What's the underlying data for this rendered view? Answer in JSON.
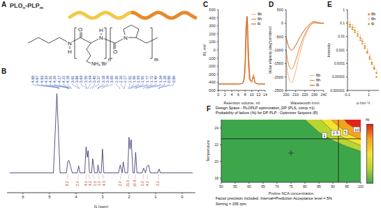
{
  "panel_labels": [
    "A",
    "B",
    "C",
    "D",
    "E",
    "F"
  ],
  "structure": {
    "title_parts": [
      {
        "text": "PLO",
        "sub": "n"
      },
      {
        "text": "-PLP",
        "sub": "m"
      }
    ],
    "atoms": [
      "N",
      "H",
      "O",
      "N",
      "H",
      "O",
      "N",
      "NH₃⁺Br⁻"
    ],
    "repeats": [
      "n",
      "m"
    ],
    "helix_colors": [
      "#f2c94c",
      "#e8892b"
    ]
  },
  "chart_data": [
    {
      "type": "line",
      "x_label": "f1 (ppm)",
      "color": "#2a2a6a",
      "x": [
        6.5,
        4.85,
        4.72,
        4.6,
        4.36,
        4.31,
        4.27,
        4.22,
        4.14,
        3.95,
        3.9,
        3.85,
        3.67,
        3.62,
        3.57,
        3.54,
        3.49,
        3.41,
        3.37,
        3.3,
        3.2,
        3.17,
        3.12,
        3.05,
        3.0,
        2.95,
        2.4,
        2.33,
        2.26,
        2.22,
        2.15,
        2.05,
        2.0,
        1.96,
        1.92,
        1.85,
        1.8,
        1.75,
        1.7,
        1.5,
        1.45,
        1.38,
        1.33,
        1.26,
        1.2,
        0.92,
        0.87,
        0.82,
        -0.4
      ],
      "values": [
        0,
        0,
        100,
        0,
        0,
        14,
        16,
        10,
        0,
        0,
        9,
        0,
        0,
        33,
        20,
        28,
        0,
        0,
        18,
        0,
        0,
        10,
        0,
        0,
        30,
        0,
        0,
        10,
        0,
        14,
        0,
        0,
        45,
        30,
        42,
        0,
        0,
        26,
        0,
        0,
        6,
        0,
        8,
        10,
        0,
        0,
        5,
        0,
        0
      ],
      "xlim": [
        6.6,
        -0.5
      ],
      "xticks": [
        6,
        5,
        4,
        3,
        2,
        1,
        0
      ],
      "ylim": [
        -25,
        105
      ],
      "tick_labels": "x",
      "peak_labels": [
        "4.68",
        "4.67",
        "4.63",
        "4.33",
        "4.31",
        "4.29",
        "4.27",
        "4.21",
        "4.18",
        "3.91",
        "3.88",
        "3.63",
        "3.59",
        "3.54",
        "3.45",
        "3.37",
        "3.18",
        "3.16",
        "3.00",
        "2.35",
        "2.20",
        "2.17",
        "2.02",
        "1.99",
        "1.93",
        "1.91",
        "1.77",
        "1.72",
        "1.45",
        "1.34",
        "1.26",
        "0.88",
        "0.85"
      ],
      "integral_x": [
        4.3,
        3.9,
        3.6,
        3.54,
        3.37,
        3.17,
        3.0,
        2.3,
        2.0,
        1.75,
        1.45,
        1.3,
        0.87
      ],
      "integral_labels": [
        "8.2",
        "2.0",
        "4.0",
        "4.2",
        "2.0",
        "1.0",
        "4.3",
        "2.0",
        "21.0",
        "10.9",
        "2.0",
        "4.1",
        "3.0"
      ]
    },
    {
      "type": "line",
      "x_label": "Retention volume, ml",
      "y_label": "RI, mV",
      "x": [
        0,
        2,
        4,
        6,
        7,
        7.5,
        8,
        8.3,
        8.6,
        9,
        9.5,
        10,
        10.5,
        11,
        12,
        14
      ],
      "series": [
        {
          "name": "6b",
          "color": "#f4b183",
          "values": [
            -420,
            -420,
            -420,
            -420,
            -415,
            -380,
            -100,
            300,
            150,
            -250,
            -390,
            -400,
            -390,
            -410,
            -420,
            -420
          ]
        },
        {
          "name": "6h",
          "color": "#ed7d31",
          "values": [
            -420,
            -420,
            -420,
            -420,
            -418,
            -400,
            -250,
            150,
            380,
            0,
            -350,
            -390,
            -300,
            -400,
            -420,
            -420
          ]
        },
        {
          "name": "6i",
          "color": "#c55a11",
          "values": [
            -420,
            -420,
            -420,
            -420,
            -418,
            -395,
            -200,
            250,
            420,
            -50,
            -370,
            -380,
            -330,
            -405,
            -420,
            -420
          ]
        }
      ],
      "xlim": [
        0,
        14
      ],
      "xticks": [
        0,
        2,
        4,
        6,
        8,
        10,
        12,
        14
      ],
      "ylim": [
        -500,
        500
      ],
      "yticks": [
        -500,
        -400,
        -300,
        -200,
        -100,
        0,
        100,
        200,
        300,
        400,
        500
      ],
      "legend": "top-right"
    },
    {
      "type": "line",
      "x_label": "Wavelength (nm)",
      "y_label": "Molar ellipticity (deg*cm²/dmol)",
      "x": [
        200,
        202,
        204,
        206,
        208,
        210,
        212,
        214,
        216,
        218,
        220,
        222,
        224,
        226,
        228,
        230,
        232,
        234,
        236,
        238,
        240
      ],
      "series": [
        {
          "name": "6b",
          "color": "#f4b183",
          "values": [
            -1400,
            -1900,
            -2150,
            -2200,
            -2050,
            -1800,
            -1500,
            -1200,
            -950,
            -700,
            -500,
            -330,
            -200,
            -90,
            -20,
            0,
            10,
            5,
            0,
            0,
            0
          ]
        },
        {
          "name": "6h",
          "color": "#ed7d31",
          "values": [
            -1000,
            -1450,
            -1650,
            -1700,
            -1600,
            -1400,
            -1180,
            -950,
            -750,
            -560,
            -400,
            -260,
            -150,
            -60,
            0,
            20,
            15,
            5,
            0,
            0,
            0
          ]
        },
        {
          "name": "6i",
          "color": "#c55a11",
          "values": [
            -500,
            -800,
            -950,
            -1000,
            -950,
            -830,
            -700,
            -560,
            -440,
            -330,
            -230,
            -140,
            -70,
            -10,
            40,
            60,
            40,
            15,
            5,
            0,
            0
          ]
        }
      ],
      "xlim": [
        200,
        240
      ],
      "xticks": [
        200,
        210,
        220,
        230,
        240
      ],
      "ylim": [
        -2500,
        500
      ],
      "yticks": [
        -2500,
        -2000,
        -1500,
        -1000,
        -500,
        0,
        500
      ],
      "legend": "bottom-right"
    },
    {
      "type": "scatter",
      "x_label": "q (nm⁻¹)",
      "y_label": "Intensity",
      "log": true,
      "marker": "circle",
      "x": [
        0.1,
        0.13,
        0.17,
        0.22,
        0.3,
        0.4,
        0.5,
        0.65,
        0.85,
        1.1,
        1.4,
        1.8,
        2.3
      ],
      "series": [
        {
          "name": "6b",
          "color": "#ed7d31",
          "values": [
            0.12,
            0.08,
            0.05,
            0.03,
            0.016,
            0.008,
            0.0045,
            0.002,
            0.0008,
            0.0003,
            0.00012,
            4e-05,
            2e-05
          ]
        },
        {
          "name": "6h",
          "color": "#f8cbad",
          "values": [
            0.18,
            0.12,
            0.075,
            0.045,
            0.024,
            0.012,
            0.0065,
            0.003,
            0.0012,
            0.00045,
            0.0002,
            7e-05,
            3e-05
          ]
        },
        {
          "name": "6i",
          "color": "#c9a227",
          "values": [
            0.08,
            0.055,
            0.035,
            0.021,
            0.011,
            0.0055,
            0.003,
            0.0014,
            0.0006,
            0.00022,
            9e-05,
            5e-05,
            1e-05
          ]
        }
      ],
      "xlim": [
        0.1,
        3
      ],
      "xticks": [
        0.1,
        1
      ],
      "ylim": [
        1e-06,
        1
      ],
      "yticks": [
        1e-06,
        1e-05,
        0.0001,
        0.001,
        0.01,
        0.1,
        1
      ],
      "legend": "top-right"
    },
    {
      "type": "contour",
      "title": "Design Space - PLOPLP optimization_DP (PLS, comp.=1)",
      "subtitle": "Probability of failure (%) for DP PLP - Optimizer Setpoint (R)",
      "x_label": "Proline NCA concentration",
      "y_label": "Temperature",
      "color": "#3da64b",
      "x": [
        70,
        75,
        80,
        85,
        90,
        95,
        100
      ],
      "contours": [
        {
          "level": 1,
          "color": "#b9d532",
          "values": [
            30,
            27.5,
            25,
            23.5,
            22.5,
            21.8,
            21.2
          ],
          "label_at": [
            87,
            23.1
          ]
        },
        {
          "level": 2.5,
          "color": "#f2e22c",
          "values": [
            33,
            30,
            27.5,
            25.2,
            23.6,
            22.6,
            21.9
          ],
          "label_at": [
            91,
            23.4
          ]
        },
        {
          "level": 5,
          "color": "#f7a21b",
          "values": [
            36,
            33,
            30,
            27.5,
            24.8,
            23.4,
            22.6
          ],
          "label_at": [
            94.5,
            23.5
          ]
        },
        {
          "level": 10,
          "color": "#e2231a",
          "values": [
            40,
            37,
            34,
            31,
            27,
            24.6,
            23.5
          ],
          "label_at": [
            98.5,
            23.8
          ]
        }
      ],
      "boundary": {
        "x": 92,
        "y": 22.7
      },
      "setpoint": [
        75,
        21
      ],
      "xlim": [
        50,
        100
      ],
      "xticks": [
        50,
        55,
        60,
        65,
        70,
        75,
        80,
        85,
        90,
        95,
        100
      ],
      "ylim": [
        17.5,
        25
      ],
      "yticks": [
        18,
        20,
        22,
        24
      ],
      "colorbar": {
        "label": "%"
      },
      "notes": [
        "Factor precision included. Interval=Prediction Acceptance level = 5%",
        "Stirring = 155 rpm"
      ]
    }
  ]
}
